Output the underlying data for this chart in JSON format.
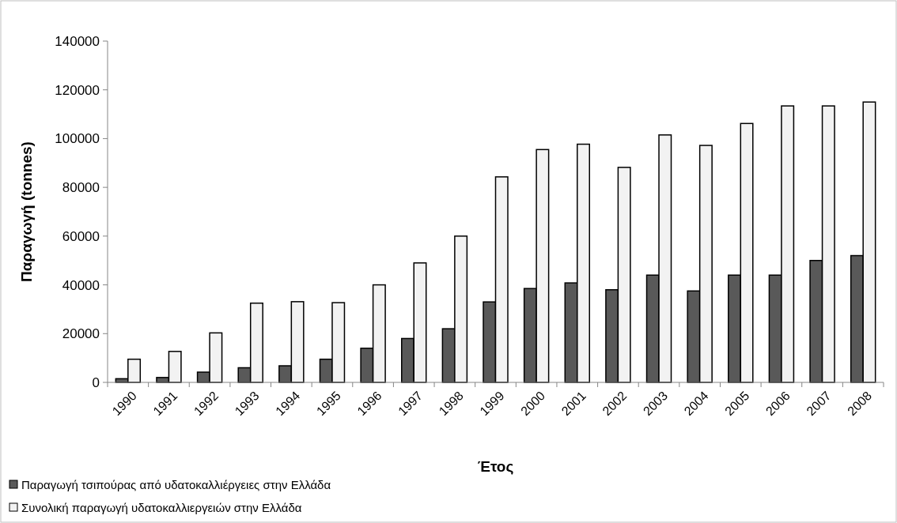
{
  "chart_data": {
    "type": "bar",
    "xlabel": "Έτος",
    "ylabel": "Παραγωγή (tonnes)",
    "categories": [
      "1990",
      "1991",
      "1992",
      "1993",
      "1994",
      "1995",
      "1996",
      "1997",
      "1998",
      "1999",
      "2000",
      "2001",
      "2002",
      "2003",
      "2004",
      "2005",
      "2006",
      "2007",
      "2008"
    ],
    "series": [
      {
        "name": "Παραγωγή τσιπούρας από υδατοκαλλιέργειες στην Ελλάδα",
        "color": "#595959",
        "values": [
          1500,
          2000,
          4200,
          6000,
          6800,
          9500,
          14000,
          18000,
          22000,
          33000,
          38500,
          40800,
          38000,
          44000,
          37500,
          44000,
          44000,
          50000,
          52000
        ]
      },
      {
        "name": "Συνολική παραγωγή υδατοκαλλιεργειών στην Ελλάδα",
        "color": "#f2f2f2",
        "values": [
          9500,
          12700,
          20300,
          32500,
          33100,
          32700,
          40000,
          49000,
          60000,
          84300,
          95500,
          97700,
          88200,
          101500,
          97200,
          106200,
          113400,
          113400,
          115000
        ]
      }
    ],
    "ylim": [
      0,
      140000
    ],
    "yticks": [
      0,
      20000,
      40000,
      60000,
      80000,
      100000,
      120000,
      140000
    ],
    "legend": "bottom left"
  }
}
